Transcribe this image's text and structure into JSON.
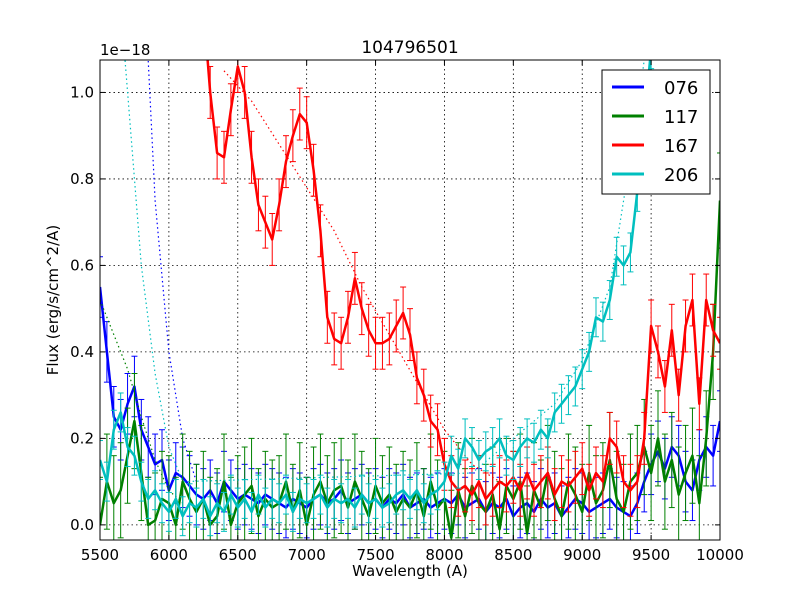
{
  "chart_data": {
    "type": "line",
    "title": "104796501",
    "xlabel": "Wavelength (A)",
    "ylabel": "Flux (erg/s/cm^2/A)",
    "y_scale_label": "1e−18",
    "xlim": [
      5500,
      10000
    ],
    "ylim": [
      -0.035,
      1.075
    ],
    "xticks": [
      "5500",
      "6000",
      "6500",
      "7000",
      "7500",
      "8000",
      "8500",
      "9000",
      "9500",
      "10000"
    ],
    "xtick_values": [
      5500,
      6000,
      6500,
      7000,
      7500,
      8000,
      8500,
      9000,
      9500,
      10000
    ],
    "yticks": [
      "0.0",
      "0.2",
      "0.4",
      "0.6",
      "0.8",
      "1.0"
    ],
    "ytick_values": [
      0.0,
      0.2,
      0.4,
      0.6,
      0.8,
      1.0
    ],
    "grid": true,
    "legend_position": "top-right",
    "series": [
      {
        "name": "076",
        "color": "#0000ff",
        "x": [
          5500,
          5550,
          5600,
          5650,
          5700,
          5750,
          5800,
          5850,
          5900,
          5950,
          6000,
          6050,
          6100,
          6150,
          6200,
          6250,
          6300,
          6350,
          6400,
          6450,
          6500,
          6550,
          6600,
          6650,
          6700,
          6750,
          6800,
          6850,
          6900,
          6950,
          7000,
          7050,
          7100,
          7150,
          7200,
          7250,
          7300,
          7350,
          7400,
          7450,
          7500,
          7550,
          7600,
          7650,
          7700,
          7750,
          7800,
          7850,
          7900,
          7950,
          8000,
          8050,
          8100,
          8150,
          8200,
          8250,
          8300,
          8350,
          8400,
          8450,
          8500,
          8550,
          8600,
          8650,
          8700,
          8750,
          8800,
          8850,
          8900,
          8950,
          9000,
          9050,
          9100,
          9150,
          9200,
          9250,
          9300,
          9350,
          9400,
          9450,
          9500,
          9550,
          9600,
          9650,
          9700,
          9750,
          9800,
          9850,
          9900,
          9950,
          10000
        ],
        "y": [
          0.55,
          0.4,
          0.25,
          0.22,
          0.28,
          0.32,
          0.22,
          0.18,
          0.14,
          0.15,
          0.08,
          0.12,
          0.11,
          0.09,
          0.07,
          0.06,
          0.08,
          0.05,
          0.1,
          0.08,
          0.06,
          0.07,
          0.06,
          0.05,
          0.07,
          0.06,
          0.05,
          0.04,
          0.06,
          0.05,
          0.04,
          0.06,
          0.07,
          0.05,
          0.06,
          0.08,
          0.05,
          0.06,
          0.07,
          0.05,
          0.06,
          0.04,
          0.06,
          0.05,
          0.07,
          0.04,
          0.05,
          0.06,
          0.04,
          0.05,
          0.06,
          0.05,
          0.07,
          0.04,
          0.05,
          0.06,
          0.03,
          0.05,
          0.04,
          0.06,
          0.02,
          0.04,
          0.05,
          0.03,
          0.06,
          0.04,
          0.05,
          0.02,
          0.04,
          0.06,
          0.05,
          0.03,
          0.04,
          0.05,
          0.06,
          0.04,
          0.03,
          0.02,
          0.05,
          0.1,
          0.14,
          0.17,
          0.13,
          0.18,
          0.16,
          0.1,
          0.08,
          0.15,
          0.18,
          0.16,
          0.24
        ],
        "err": 0.07,
        "model": {
          "x": [
            5500,
            5600,
            5700,
            5800,
            5850,
            5900,
            6000,
            6100,
            6200
          ],
          "y": [
            2.0,
            1.9,
            1.7,
            1.3,
            1.075,
            0.75,
            0.4,
            0.2,
            0.1
          ]
        }
      },
      {
        "name": "117",
        "color": "#008000",
        "x": [
          5500,
          5550,
          5600,
          5650,
          5700,
          5750,
          5800,
          5850,
          5900,
          5950,
          6000,
          6050,
          6100,
          6150,
          6200,
          6250,
          6300,
          6350,
          6400,
          6450,
          6500,
          6550,
          6600,
          6650,
          6700,
          6750,
          6800,
          6850,
          6900,
          6950,
          7000,
          7050,
          7100,
          7150,
          7200,
          7250,
          7300,
          7350,
          7400,
          7450,
          7500,
          7550,
          7600,
          7650,
          7700,
          7750,
          7800,
          7850,
          7900,
          7950,
          8000,
          8050,
          8100,
          8150,
          8200,
          8250,
          8300,
          8350,
          8400,
          8450,
          8500,
          8550,
          8600,
          8650,
          8700,
          8750,
          8800,
          8850,
          8900,
          8950,
          9000,
          9050,
          9100,
          9150,
          9200,
          9250,
          9300,
          9350,
          9400,
          9450,
          9500,
          9550,
          9600,
          9650,
          9700,
          9750,
          9800,
          9850,
          9900,
          9950,
          10000
        ],
        "y": [
          0.0,
          0.1,
          0.05,
          0.08,
          0.16,
          0.24,
          0.12,
          0.0,
          0.01,
          0.06,
          0.05,
          0.0,
          0.1,
          0.06,
          0.03,
          0.06,
          0.0,
          0.02,
          0.1,
          0.0,
          0.05,
          0.07,
          0.09,
          0.02,
          0.06,
          0.04,
          0.05,
          0.1,
          0.03,
          0.08,
          0.0,
          0.07,
          0.1,
          0.05,
          0.08,
          0.09,
          0.04,
          0.1,
          0.06,
          0.02,
          0.09,
          0.05,
          0.07,
          0.03,
          0.06,
          0.04,
          0.08,
          0.02,
          0.1,
          0.04,
          0.06,
          -0.03,
          0.08,
          0.02,
          0.09,
          0.05,
          0.03,
          0.07,
          -0.01,
          0.09,
          0.06,
          0.1,
          -0.02,
          0.08,
          0.04,
          0.12,
          0.06,
          0.02,
          0.1,
          0.07,
          0.03,
          0.12,
          0.05,
          0.08,
          0.15,
          0.06,
          0.03,
          0.1,
          0.12,
          0.18,
          0.12,
          0.2,
          0.1,
          0.15,
          0.07,
          0.12,
          0.16,
          0.05,
          0.2,
          0.4,
          0.75
        ],
        "err": 0.11,
        "model": {
          "x": [
            5500,
            5600,
            5700,
            5800,
            5900,
            6000,
            6100
          ],
          "y": [
            0.52,
            0.44,
            0.36,
            0.25,
            0.15,
            0.08,
            0.05
          ]
        }
      },
      {
        "name": "167",
        "color": "#ff0000",
        "x": [
          6250,
          6300,
          6350,
          6400,
          6450,
          6500,
          6550,
          6600,
          6650,
          6700,
          6750,
          6800,
          6850,
          6900,
          6950,
          7000,
          7050,
          7100,
          7150,
          7200,
          7250,
          7300,
          7350,
          7400,
          7450,
          7500,
          7550,
          7600,
          7650,
          7700,
          7750,
          7800,
          7850,
          7900,
          7950,
          8000,
          8050,
          8100,
          8150,
          8200,
          8250,
          8300,
          8350,
          8400,
          8450,
          8500,
          8550,
          8600,
          8650,
          8700,
          8750,
          8800,
          8850,
          8900,
          8950,
          9000,
          9050,
          9100,
          9150,
          9200,
          9250,
          9300,
          9350,
          9400,
          9450,
          9500,
          9550,
          9600,
          9650,
          9700,
          9750,
          9800,
          9850,
          9900,
          9950,
          10000
        ],
        "y": [
          1.2,
          1.0,
          0.86,
          0.85,
          0.96,
          1.06,
          1.0,
          0.85,
          0.74,
          0.7,
          0.66,
          0.74,
          0.84,
          0.9,
          0.95,
          0.93,
          0.82,
          0.68,
          0.48,
          0.43,
          0.42,
          0.48,
          0.57,
          0.5,
          0.45,
          0.42,
          0.42,
          0.43,
          0.46,
          0.49,
          0.44,
          0.34,
          0.3,
          0.24,
          0.22,
          0.14,
          0.1,
          0.08,
          0.09,
          0.07,
          0.1,
          0.06,
          0.08,
          0.1,
          0.09,
          0.11,
          0.08,
          0.12,
          0.08,
          0.1,
          0.12,
          0.07,
          0.1,
          0.09,
          0.11,
          0.13,
          0.08,
          0.12,
          0.1,
          0.2,
          0.18,
          0.1,
          0.08,
          0.1,
          0.2,
          0.46,
          0.4,
          0.32,
          0.45,
          0.3,
          0.46,
          0.52,
          0.28,
          0.52,
          0.45,
          0.42
        ],
        "err": 0.06,
        "model": {
          "x": [
            6400,
            6600,
            6800,
            7000,
            7200,
            7400,
            7600,
            7800,
            8000,
            8200,
            8400
          ],
          "y": [
            1.05,
            0.98,
            0.88,
            0.78,
            0.68,
            0.55,
            0.44,
            0.33,
            0.22,
            0.14,
            0.1
          ]
        }
      },
      {
        "name": "206",
        "color": "#00bfbf",
        "x": [
          5500,
          5550,
          5600,
          5650,
          5700,
          5750,
          5800,
          5850,
          5900,
          5950,
          6000,
          6050,
          6100,
          6150,
          6200,
          6250,
          6300,
          6350,
          6400,
          6450,
          6500,
          6550,
          6600,
          6650,
          6700,
          6750,
          6800,
          6850,
          6900,
          6950,
          7000,
          7050,
          7100,
          7150,
          7200,
          7250,
          7300,
          7350,
          7400,
          7450,
          7500,
          7550,
          7600,
          7650,
          7700,
          7750,
          7800,
          7850,
          7900,
          7950,
          8000,
          8050,
          8100,
          8150,
          8200,
          8250,
          8300,
          8350,
          8400,
          8450,
          8500,
          8550,
          8600,
          8650,
          8700,
          8750,
          8800,
          8850,
          8900,
          8950,
          9000,
          9050,
          9100,
          9150,
          9200,
          9250,
          9300,
          9350,
          9400,
          9450,
          9500
        ],
        "y": [
          0.15,
          0.1,
          0.22,
          0.26,
          0.18,
          0.16,
          0.1,
          0.06,
          0.08,
          0.05,
          0.03,
          0.06,
          0.02,
          0.05,
          0.04,
          0.06,
          0.02,
          0.05,
          0.03,
          0.07,
          0.04,
          0.06,
          0.03,
          0.07,
          0.04,
          0.06,
          0.05,
          0.07,
          0.03,
          0.06,
          0.05,
          0.06,
          0.07,
          0.04,
          0.06,
          0.05,
          0.06,
          0.04,
          0.07,
          0.05,
          0.06,
          0.04,
          0.05,
          0.07,
          0.08,
          0.06,
          0.08,
          0.05,
          0.07,
          0.08,
          0.1,
          0.16,
          0.13,
          0.2,
          0.18,
          0.15,
          0.17,
          0.18,
          0.2,
          0.16,
          0.15,
          0.18,
          0.2,
          0.19,
          0.22,
          0.2,
          0.26,
          0.28,
          0.3,
          0.32,
          0.36,
          0.4,
          0.48,
          0.47,
          0.52,
          0.62,
          0.6,
          0.63,
          0.77,
          0.93,
          1.1
        ],
        "err": 0.045,
        "model": {
          "x": [
            5500,
            5600,
            5700,
            5800,
            5900,
            6000,
            6100,
            8200,
            8500,
            8800,
            9000,
            9200,
            9300,
            9400,
            9450
          ],
          "y": [
            1.8,
            1.4,
            1.0,
            0.6,
            0.35,
            0.18,
            0.1,
            0.12,
            0.2,
            0.28,
            0.38,
            0.55,
            0.75,
            0.95,
            1.075
          ]
        }
      }
    ]
  }
}
